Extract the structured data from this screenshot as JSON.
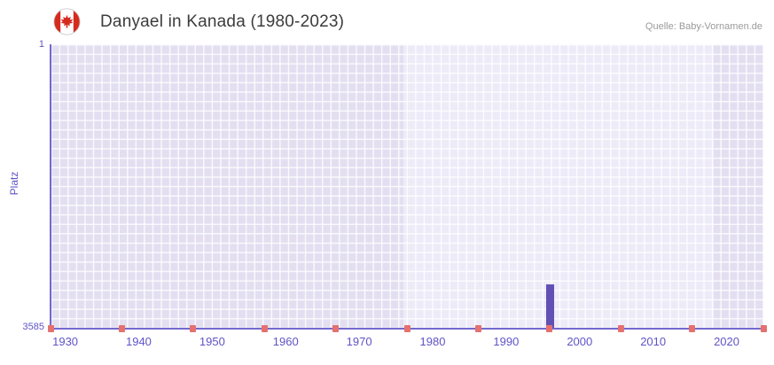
{
  "header": {
    "title": "Danyael in Kanada (1980-2023)",
    "source": "Quelle: Baby-Vornamen.de",
    "flag_icon": "canada-flag-icon"
  },
  "chart_data": {
    "type": "bar",
    "title": "Danyael in Kanada (1980-2023)",
    "xlabel": "",
    "ylabel": "Platz",
    "y_axis": {
      "inverted": true,
      "min": 1,
      "max": 3585,
      "tick_labels": [
        "1",
        "3585"
      ]
    },
    "x_range": [
      1928,
      2025
    ],
    "x_ticks": [
      1930,
      1940,
      1950,
      1960,
      1970,
      1980,
      1990,
      2000,
      2010,
      2020
    ],
    "grid": "on",
    "legend": "none",
    "series": [
      {
        "name": "Platz",
        "color": "#6350b5",
        "points": [
          {
            "year": 1996,
            "rank": 3040
          }
        ]
      }
    ],
    "bottom_markers": {
      "color": "#e4716f",
      "fractions": [
        0,
        0.1,
        0.2,
        0.3,
        0.4,
        0.5,
        0.6,
        0.7,
        0.8,
        0.9,
        1.0
      ]
    },
    "background_bands": [
      {
        "from_fraction": 0.0,
        "to_fraction": 0.495,
        "color": "#e3dff1"
      },
      {
        "from_fraction": 0.495,
        "to_fraction": 0.93,
        "color": "#edebf8"
      },
      {
        "from_fraction": 0.93,
        "to_fraction": 1.0,
        "color": "#e3dff1"
      }
    ]
  },
  "colors": {
    "axis": "#7468cf",
    "tick_text": "#5f54c6",
    "title_text": "#3c3c3c",
    "source_text": "#9a9a9a"
  }
}
